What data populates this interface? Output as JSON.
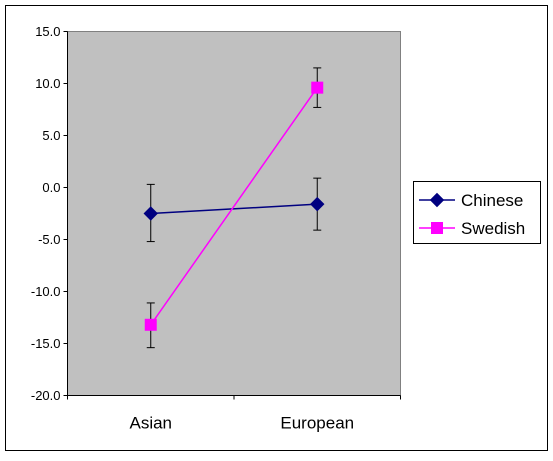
{
  "chart_data": {
    "type": "line",
    "title": "",
    "xlabel": "",
    "ylabel": "",
    "categories": [
      "Asian",
      "European"
    ],
    "ylim": [
      -20,
      15
    ],
    "yticks": [
      15,
      10,
      5,
      0,
      -5,
      -10,
      -15,
      -20
    ],
    "ytick_labels": [
      "15.0",
      "10.0",
      "5.0",
      "0.0",
      "-5.0",
      "-10.0",
      "-15.0",
      "-20.0"
    ],
    "grid": false,
    "legend_position": "right",
    "plot_background": "#c0c0c0",
    "series": [
      {
        "name": "Chinese",
        "color": "#000080",
        "marker": "diamond",
        "values": [
          -2.5,
          -1.6
        ],
        "error_lower": [
          -5.2,
          -4.1
        ],
        "error_upper": [
          0.3,
          0.9
        ]
      },
      {
        "name": "Swedish",
        "color": "#ff00ff",
        "marker": "square",
        "values": [
          -13.2,
          9.6
        ],
        "error_lower": [
          -15.4,
          7.7
        ],
        "error_upper": [
          -11.1,
          11.5
        ]
      }
    ]
  }
}
